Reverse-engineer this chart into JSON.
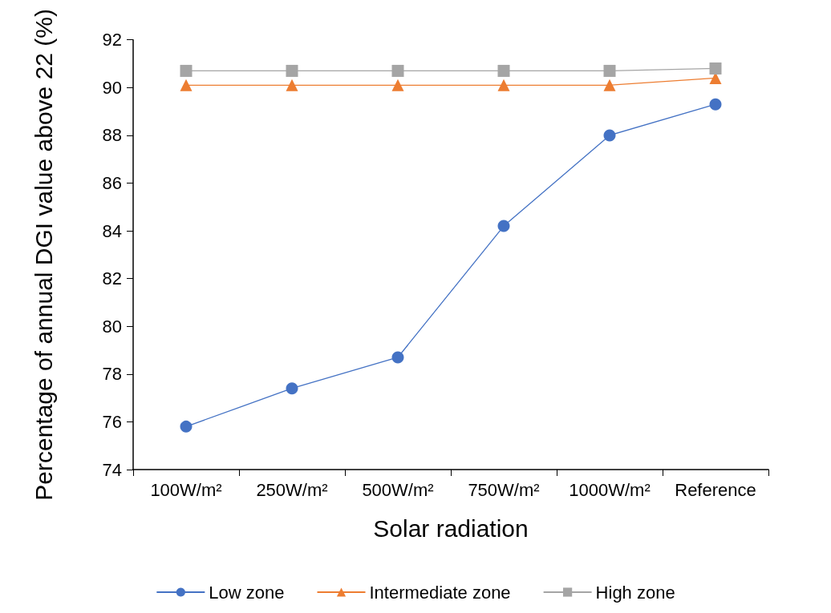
{
  "chart_data": {
    "type": "line",
    "xlabel": "Solar radiation",
    "ylabel": "Percentage of annual DGI value above 22 (%)",
    "categories": [
      "100W/m²",
      "250W/m²",
      "500W/m²",
      "750W/m²",
      "1000W/m²",
      "Reference"
    ],
    "series": [
      {
        "name": "Low zone",
        "color": "#4472c4",
        "marker": "circle",
        "values": [
          75.8,
          77.4,
          78.7,
          84.2,
          88.0,
          89.3
        ]
      },
      {
        "name": "Intermediate zone",
        "color": "#ed7d31",
        "marker": "triangle",
        "values": [
          90.1,
          90.1,
          90.1,
          90.1,
          90.1,
          90.4
        ]
      },
      {
        "name": "High zone",
        "color": "#a5a5a5",
        "marker": "square",
        "values": [
          90.7,
          90.7,
          90.7,
          90.7,
          90.7,
          90.8
        ]
      }
    ],
    "ylim": [
      74,
      92
    ],
    "yticks": [
      74,
      76,
      78,
      80,
      82,
      84,
      86,
      88,
      90,
      92
    ],
    "grid": false,
    "legend": "bottom",
    "line_style": "solid"
  }
}
